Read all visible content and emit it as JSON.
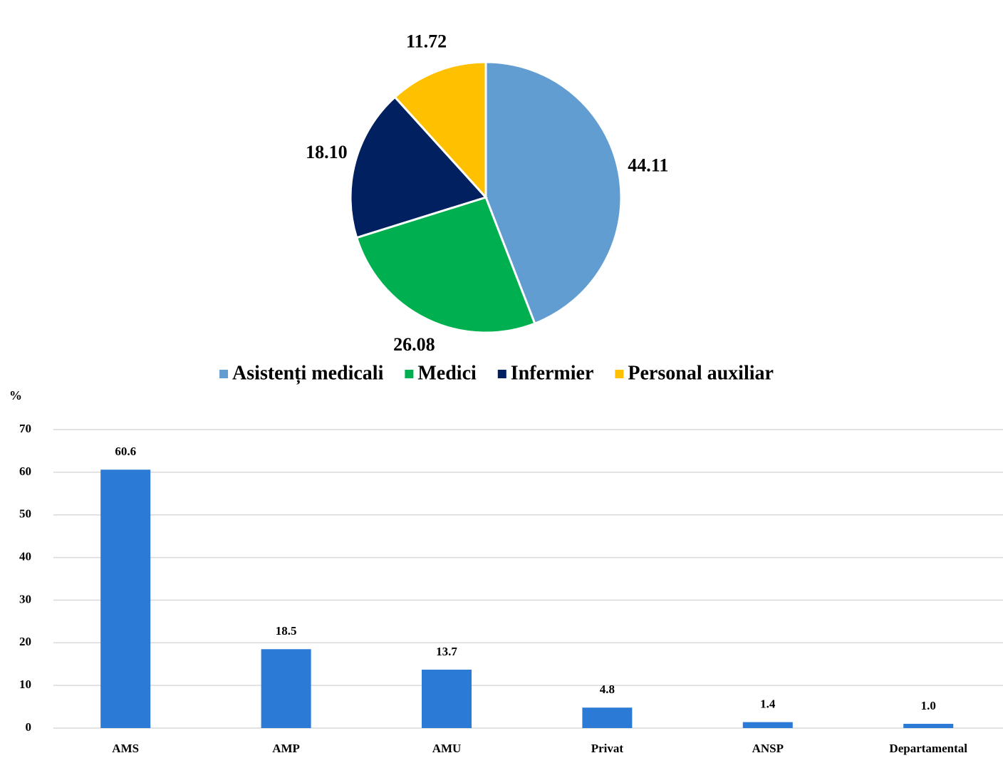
{
  "chart_data": [
    {
      "type": "pie",
      "categories": [
        "Asistenți medicali",
        "Medici",
        "Infermier",
        "Personal auxiliar"
      ],
      "values": [
        44.11,
        26.08,
        18.1,
        11.72
      ],
      "value_labels": [
        "44.11",
        "26.08",
        "18.10",
        "11.72"
      ],
      "colors": [
        "#629dd1",
        "#00b050",
        "#002060",
        "#ffc000"
      ],
      "legend": "bottom"
    },
    {
      "type": "bar",
      "ylabel": "%",
      "categories": [
        "AMS",
        "AMP",
        "AMU",
        "Privat",
        "ANSP",
        "Departamental"
      ],
      "values": [
        60.6,
        18.5,
        13.7,
        4.8,
        1.4,
        1.0
      ],
      "value_labels": [
        "60.6",
        "18.5",
        "13.7",
        "4.8",
        "1.4",
        "1.0"
      ],
      "color": "#2b7bd6",
      "ylim": [
        0,
        70
      ],
      "yticks": [
        0,
        10,
        20,
        30,
        40,
        50,
        60,
        70
      ],
      "grid": true
    }
  ]
}
